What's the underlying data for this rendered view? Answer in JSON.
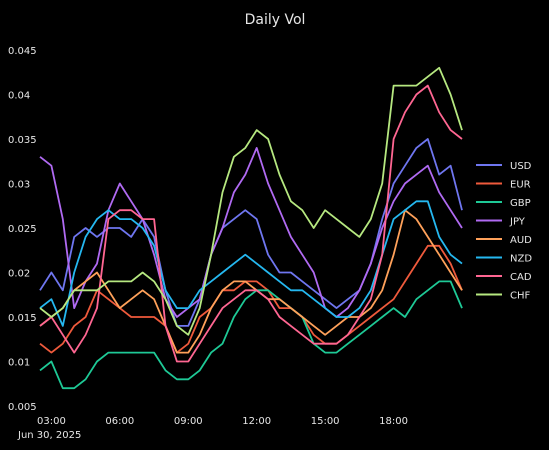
{
  "chart_data": {
    "type": "line",
    "title": "Daily Vol",
    "xlabel": "",
    "ylabel": "",
    "x_ticks": [
      "03:00",
      "06:00",
      "09:00",
      "12:00",
      "15:00",
      "18:00"
    ],
    "x_tick_hours": [
      3,
      6,
      9,
      12,
      15,
      18
    ],
    "x_date_label": "Jun 30, 2025",
    "x_range_hours": [
      2.5,
      21.0
    ],
    "ylim": [
      0.005,
      0.045
    ],
    "y_ticks": [
      "0.005",
      "0.01",
      "0.015",
      "0.02",
      "0.025",
      "0.03",
      "0.035",
      "0.04",
      "0.045"
    ],
    "y_tick_values": [
      0.005,
      0.01,
      0.015,
      0.02,
      0.025,
      0.03,
      0.035,
      0.04,
      0.045
    ],
    "grid": false,
    "legend_position": "right",
    "x": [
      2.5,
      3.0,
      3.5,
      4.0,
      4.5,
      5.0,
      5.5,
      6.0,
      6.5,
      7.0,
      7.5,
      8.0,
      8.5,
      9.0,
      9.5,
      10.0,
      10.5,
      11.0,
      11.5,
      12.0,
      12.5,
      13.0,
      13.5,
      14.0,
      14.5,
      15.0,
      15.5,
      16.0,
      16.5,
      17.0,
      17.5,
      18.0,
      18.5,
      19.0,
      19.5,
      20.0,
      20.5,
      21.0
    ],
    "series": [
      {
        "name": "USD",
        "color": "#6f76f0",
        "values": [
          0.018,
          0.02,
          0.018,
          0.024,
          0.025,
          0.024,
          0.025,
          0.025,
          0.024,
          0.026,
          0.024,
          0.018,
          0.014,
          0.014,
          0.017,
          0.022,
          0.025,
          0.026,
          0.027,
          0.026,
          0.022,
          0.02,
          0.02,
          0.019,
          0.018,
          0.017,
          0.016,
          0.017,
          0.018,
          0.021,
          0.026,
          0.03,
          0.032,
          0.034,
          0.035,
          0.031,
          0.032,
          0.027
        ]
      },
      {
        "name": "EUR",
        "color": "#ef5a3c",
        "values": [
          0.012,
          0.011,
          0.012,
          0.014,
          0.015,
          0.018,
          0.017,
          0.016,
          0.015,
          0.015,
          0.015,
          0.014,
          0.011,
          0.012,
          0.015,
          0.016,
          0.018,
          0.018,
          0.019,
          0.019,
          0.018,
          0.016,
          0.016,
          0.015,
          0.013,
          0.012,
          0.012,
          0.013,
          0.014,
          0.015,
          0.016,
          0.017,
          0.019,
          0.021,
          0.023,
          0.023,
          0.021,
          0.018
        ]
      },
      {
        "name": "GBP",
        "color": "#1ec996",
        "values": [
          0.009,
          0.01,
          0.007,
          0.007,
          0.008,
          0.01,
          0.011,
          0.011,
          0.011,
          0.011,
          0.011,
          0.009,
          0.008,
          0.008,
          0.009,
          0.011,
          0.012,
          0.015,
          0.017,
          0.018,
          0.018,
          0.017,
          0.016,
          0.015,
          0.012,
          0.011,
          0.011,
          0.012,
          0.013,
          0.014,
          0.015,
          0.016,
          0.015,
          0.017,
          0.018,
          0.019,
          0.019,
          0.016
        ]
      },
      {
        "name": "JPY",
        "color": "#b06af2",
        "values": [
          0.033,
          0.032,
          0.026,
          0.016,
          0.019,
          0.021,
          0.027,
          0.03,
          0.028,
          0.026,
          0.022,
          0.017,
          0.015,
          0.016,
          0.017,
          0.022,
          0.025,
          0.029,
          0.031,
          0.034,
          0.03,
          0.027,
          0.024,
          0.022,
          0.02,
          0.016,
          0.015,
          0.016,
          0.018,
          0.021,
          0.025,
          0.028,
          0.03,
          0.031,
          0.032,
          0.029,
          0.027,
          0.025
        ]
      },
      {
        "name": "AUD",
        "color": "#ffa15a",
        "values": [
          0.014,
          0.015,
          0.016,
          0.018,
          0.019,
          0.02,
          0.018,
          0.016,
          0.017,
          0.018,
          0.017,
          0.014,
          0.011,
          0.011,
          0.013,
          0.016,
          0.018,
          0.019,
          0.019,
          0.018,
          0.017,
          0.017,
          0.016,
          0.015,
          0.014,
          0.013,
          0.014,
          0.015,
          0.015,
          0.016,
          0.018,
          0.022,
          0.027,
          0.026,
          0.024,
          0.022,
          0.02,
          0.018
        ]
      },
      {
        "name": "NZD",
        "color": "#25b8f0",
        "values": [
          0.016,
          0.017,
          0.014,
          0.02,
          0.024,
          0.026,
          0.027,
          0.026,
          0.026,
          0.025,
          0.023,
          0.018,
          0.016,
          0.016,
          0.018,
          0.019,
          0.02,
          0.021,
          0.022,
          0.021,
          0.02,
          0.019,
          0.018,
          0.018,
          0.017,
          0.016,
          0.015,
          0.015,
          0.016,
          0.018,
          0.022,
          0.026,
          0.027,
          0.028,
          0.028,
          0.024,
          0.022,
          0.021
        ]
      },
      {
        "name": "CAD",
        "color": "#ff6692",
        "values": [
          0.014,
          0.015,
          0.013,
          0.011,
          0.013,
          0.016,
          0.026,
          0.027,
          0.027,
          0.026,
          0.026,
          0.014,
          0.01,
          0.01,
          0.012,
          0.014,
          0.016,
          0.017,
          0.018,
          0.018,
          0.017,
          0.015,
          0.014,
          0.013,
          0.012,
          0.012,
          0.012,
          0.013,
          0.015,
          0.017,
          0.022,
          0.035,
          0.038,
          0.04,
          0.041,
          0.038,
          0.036,
          0.035
        ]
      },
      {
        "name": "CHF",
        "color": "#b6e880",
        "values": [
          0.016,
          0.015,
          0.016,
          0.018,
          0.018,
          0.018,
          0.019,
          0.019,
          0.019,
          0.02,
          0.019,
          0.017,
          0.014,
          0.013,
          0.016,
          0.022,
          0.029,
          0.033,
          0.034,
          0.036,
          0.035,
          0.031,
          0.028,
          0.027,
          0.025,
          0.027,
          0.026,
          0.025,
          0.024,
          0.026,
          0.03,
          0.041,
          0.041,
          0.041,
          0.042,
          0.043,
          0.04,
          0.036
        ]
      }
    ]
  }
}
